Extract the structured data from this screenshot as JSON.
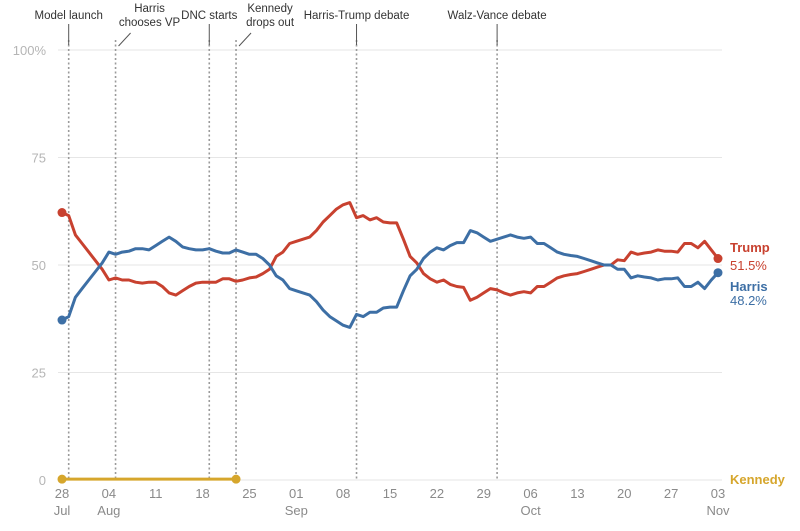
{
  "chart_data": {
    "type": "line",
    "title": "",
    "xlabel": "",
    "ylabel": "",
    "ylim": [
      0,
      100
    ],
    "xlim": [
      "2024-07-28",
      "2024-11-03"
    ],
    "grid": true,
    "yticks": [
      "0",
      "25",
      "50",
      "75",
      "100%"
    ],
    "xticks": [
      {
        "date": "2024-07-28",
        "day": "28",
        "month": "Jul"
      },
      {
        "date": "2024-08-04",
        "day": "04",
        "month": "Aug"
      },
      {
        "date": "2024-08-11",
        "day": "11",
        "month": ""
      },
      {
        "date": "2024-08-18",
        "day": "18",
        "month": ""
      },
      {
        "date": "2024-08-25",
        "day": "25",
        "month": ""
      },
      {
        "date": "2024-09-01",
        "day": "01",
        "month": "Sep"
      },
      {
        "date": "2024-09-08",
        "day": "08",
        "month": ""
      },
      {
        "date": "2024-09-15",
        "day": "15",
        "month": ""
      },
      {
        "date": "2024-09-22",
        "day": "22",
        "month": ""
      },
      {
        "date": "2024-09-29",
        "day": "29",
        "month": ""
      },
      {
        "date": "2024-10-06",
        "day": "06",
        "month": "Oct"
      },
      {
        "date": "2024-10-13",
        "day": "13",
        "month": ""
      },
      {
        "date": "2024-10-20",
        "day": "20",
        "month": ""
      },
      {
        "date": "2024-10-27",
        "day": "27",
        "month": ""
      },
      {
        "date": "2024-11-03",
        "day": "03",
        "month": "Nov"
      }
    ],
    "events": [
      {
        "date": "2024-07-29",
        "lines": [
          "Model launch"
        ],
        "label_pos": "left"
      },
      {
        "date": "2024-08-05",
        "lines": [
          "Harris",
          "chooses VP"
        ],
        "label_pos": "center"
      },
      {
        "date": "2024-08-19",
        "lines": [
          "DNC starts"
        ],
        "label_pos": "center"
      },
      {
        "date": "2024-08-23",
        "lines": [
          "Kennedy",
          "drops out"
        ],
        "label_pos": "center"
      },
      {
        "date": "2024-09-10",
        "lines": [
          "Harris-Trump debate"
        ],
        "label_pos": "center"
      },
      {
        "date": "2024-10-01",
        "lines": [
          "Walz-Vance debate"
        ],
        "label_pos": "center"
      }
    ],
    "series": [
      {
        "name": "Trump",
        "color": "#c8412f",
        "end_label": "51.5%",
        "x": [
          "2024-07-28",
          "2024-07-29",
          "2024-07-30",
          "2024-07-31",
          "2024-08-01",
          "2024-08-02",
          "2024-08-03",
          "2024-08-04",
          "2024-08-05",
          "2024-08-06",
          "2024-08-07",
          "2024-08-08",
          "2024-08-09",
          "2024-08-10",
          "2024-08-11",
          "2024-08-12",
          "2024-08-13",
          "2024-08-14",
          "2024-08-15",
          "2024-08-16",
          "2024-08-17",
          "2024-08-18",
          "2024-08-19",
          "2024-08-20",
          "2024-08-21",
          "2024-08-22",
          "2024-08-23",
          "2024-08-24",
          "2024-08-25",
          "2024-08-26",
          "2024-08-27",
          "2024-08-28",
          "2024-08-29",
          "2024-08-30",
          "2024-08-31",
          "2024-09-01",
          "2024-09-02",
          "2024-09-03",
          "2024-09-04",
          "2024-09-05",
          "2024-09-06",
          "2024-09-07",
          "2024-09-08",
          "2024-09-09",
          "2024-09-10",
          "2024-09-11",
          "2024-09-12",
          "2024-09-13",
          "2024-09-14",
          "2024-09-15",
          "2024-09-16",
          "2024-09-17",
          "2024-09-18",
          "2024-09-19",
          "2024-09-20",
          "2024-09-21",
          "2024-09-22",
          "2024-09-23",
          "2024-09-24",
          "2024-09-25",
          "2024-09-26",
          "2024-09-27",
          "2024-09-28",
          "2024-09-29",
          "2024-09-30",
          "2024-10-01",
          "2024-10-02",
          "2024-10-03",
          "2024-10-04",
          "2024-10-05",
          "2024-10-06",
          "2024-10-07",
          "2024-10-08",
          "2024-10-09",
          "2024-10-10",
          "2024-10-11",
          "2024-10-12",
          "2024-10-13",
          "2024-10-14",
          "2024-10-15",
          "2024-10-16",
          "2024-10-17",
          "2024-10-18",
          "2024-10-19",
          "2024-10-20",
          "2024-10-21",
          "2024-10-22",
          "2024-10-23",
          "2024-10-24",
          "2024-10-25",
          "2024-10-26",
          "2024-10-27",
          "2024-10-28",
          "2024-10-29",
          "2024-10-30",
          "2024-10-31",
          "2024-11-01",
          "2024-11-02"
        ],
        "values": [
          62.2,
          61.5,
          57.0,
          55.0,
          53.0,
          51.0,
          49.0,
          46.5,
          47.0,
          46.5,
          46.5,
          46.0,
          45.8,
          46.0,
          46.0,
          45.0,
          43.5,
          43.0,
          44.0,
          45.0,
          45.8,
          46.0,
          46.0,
          46.0,
          46.8,
          46.8,
          46.2,
          46.5,
          47.0,
          47.2,
          48.0,
          49.0,
          52.0,
          53.0,
          55.0,
          55.5,
          56.0,
          56.5,
          58.0,
          60.0,
          61.5,
          63.0,
          64.0,
          64.5,
          61.0,
          61.5,
          60.5,
          61.0,
          60.0,
          59.8,
          59.8,
          56.0,
          52.0,
          50.5,
          48.0,
          46.8,
          46.0,
          46.5,
          45.5,
          45.0,
          44.8,
          41.8,
          42.5,
          43.5,
          44.5,
          44.2,
          43.5,
          43.0,
          43.5,
          43.8,
          43.5,
          45.0,
          45.0,
          46.0,
          47.0,
          47.5,
          47.8,
          48.0,
          48.5,
          49.0,
          49.5,
          50.0,
          50.0,
          51.2,
          51.0,
          53.0,
          52.5,
          52.8,
          53.0,
          53.5,
          53.2,
          53.2,
          53.0,
          55.0,
          55.0,
          54.0,
          55.5,
          53.5
        ]
      },
      {
        "name": "Harris",
        "color": "#3d6fa5",
        "end_label": "48.2%",
        "x": [
          "2024-07-28",
          "2024-07-29",
          "2024-07-30",
          "2024-07-31",
          "2024-08-01",
          "2024-08-02",
          "2024-08-03",
          "2024-08-04",
          "2024-08-05",
          "2024-08-06",
          "2024-08-07",
          "2024-08-08",
          "2024-08-09",
          "2024-08-10",
          "2024-08-11",
          "2024-08-12",
          "2024-08-13",
          "2024-08-14",
          "2024-08-15",
          "2024-08-16",
          "2024-08-17",
          "2024-08-18",
          "2024-08-19",
          "2024-08-20",
          "2024-08-21",
          "2024-08-22",
          "2024-08-23",
          "2024-08-24",
          "2024-08-25",
          "2024-08-26",
          "2024-08-27",
          "2024-08-28",
          "2024-08-29",
          "2024-08-30",
          "2024-08-31",
          "2024-09-01",
          "2024-09-02",
          "2024-09-03",
          "2024-09-04",
          "2024-09-05",
          "2024-09-06",
          "2024-09-07",
          "2024-09-08",
          "2024-09-09",
          "2024-09-10",
          "2024-09-11",
          "2024-09-12",
          "2024-09-13",
          "2024-09-14",
          "2024-09-15",
          "2024-09-16",
          "2024-09-17",
          "2024-09-18",
          "2024-09-19",
          "2024-09-20",
          "2024-09-21",
          "2024-09-22",
          "2024-09-23",
          "2024-09-24",
          "2024-09-25",
          "2024-09-26",
          "2024-09-27",
          "2024-09-28",
          "2024-09-29",
          "2024-09-30",
          "2024-10-01",
          "2024-10-02",
          "2024-10-03",
          "2024-10-04",
          "2024-10-05",
          "2024-10-06",
          "2024-10-07",
          "2024-10-08",
          "2024-10-09",
          "2024-10-10",
          "2024-10-11",
          "2024-10-12",
          "2024-10-13",
          "2024-10-14",
          "2024-10-15",
          "2024-10-16",
          "2024-10-17",
          "2024-10-18",
          "2024-10-19",
          "2024-10-20",
          "2024-10-21",
          "2024-10-22",
          "2024-10-23",
          "2024-10-24",
          "2024-10-25",
          "2024-10-26",
          "2024-10-27",
          "2024-10-28",
          "2024-10-29",
          "2024-10-30",
          "2024-10-31",
          "2024-11-01",
          "2024-11-02"
        ],
        "values": [
          37.2,
          38.0,
          42.5,
          44.5,
          46.5,
          48.5,
          50.5,
          53.0,
          52.5,
          53.0,
          53.2,
          53.8,
          53.8,
          53.5,
          54.5,
          55.5,
          56.5,
          55.5,
          54.2,
          53.8,
          53.5,
          53.5,
          53.8,
          53.2,
          52.8,
          52.8,
          53.5,
          53.0,
          52.5,
          52.5,
          51.5,
          50.0,
          47.5,
          46.5,
          44.5,
          44.0,
          43.5,
          43.0,
          41.5,
          39.5,
          38.0,
          37.0,
          36.0,
          35.5,
          38.5,
          38.0,
          39.0,
          39.0,
          40.0,
          40.2,
          40.2,
          44.0,
          47.5,
          49.0,
          51.5,
          53.0,
          54.0,
          53.5,
          54.5,
          55.2,
          55.2,
          58.0,
          57.5,
          56.5,
          55.5,
          56.0,
          56.5,
          57.0,
          56.5,
          56.2,
          56.5,
          55.0,
          55.0,
          54.0,
          53.0,
          52.5,
          52.2,
          52.0,
          51.5,
          51.0,
          50.5,
          50.0,
          50.0,
          49.0,
          49.0,
          47.0,
          47.5,
          47.2,
          47.0,
          46.5,
          46.8,
          46.8,
          47.0,
          45.0,
          45.0,
          46.0,
          44.5,
          46.5
        ]
      },
      {
        "name": "Kennedy",
        "color": "#d6a62c",
        "end_label": "",
        "x": [
          "2024-07-28",
          "2024-08-23"
        ],
        "values": [
          0.2,
          0.2
        ]
      }
    ],
    "end_points": [
      {
        "series": "Trump",
        "date": "2024-11-03",
        "value": 51.5
      },
      {
        "series": "Harris",
        "date": "2024-11-03",
        "value": 48.2
      }
    ],
    "start_points": [
      {
        "series": "Trump",
        "date": "2024-07-28",
        "value": 62.2
      },
      {
        "series": "Harris",
        "date": "2024-07-28",
        "value": 37.2
      },
      {
        "series": "Kennedy",
        "date": "2024-07-28",
        "value": 0.2
      },
      {
        "series": "Kennedy",
        "date": "2024-08-23",
        "value": 0.2
      }
    ]
  }
}
